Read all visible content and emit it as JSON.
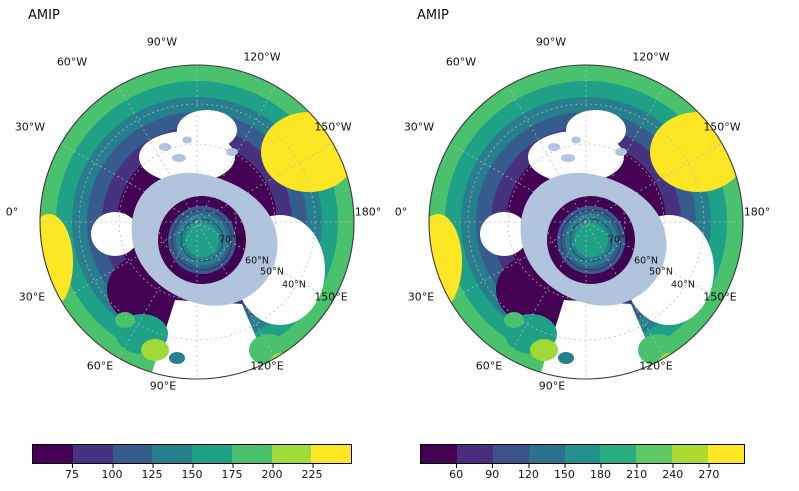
{
  "figure": {
    "panels": [
      {
        "title": "AMIP",
        "lon_labels": [
          "90°W",
          "60°W",
          "120°W",
          "30°W",
          "150°W",
          "0°",
          "180°",
          "30°E",
          "150°E",
          "60°E",
          "120°E",
          "90°E"
        ],
        "lat_labels": [
          "70°N",
          "60°N",
          "50°N",
          "40°N"
        ],
        "colorbar": {
          "ticks": [
            "75",
            "100",
            "125",
            "150",
            "175",
            "200",
            "225"
          ],
          "colors": [
            "#440154",
            "#46327e",
            "#365c8d",
            "#277f8e",
            "#1fa187",
            "#4ac16d",
            "#a0da39",
            "#fde725"
          ]
        }
      },
      {
        "title": "AMIP",
        "lon_labels": [
          "90°W",
          "60°W",
          "120°W",
          "30°W",
          "150°W",
          "0°",
          "180°",
          "30°E",
          "150°E",
          "60°E",
          "120°E",
          "90°E"
        ],
        "lat_labels": [
          "70°N",
          "60°N",
          "50°N",
          "40°N"
        ],
        "colorbar": {
          "ticks": [
            "60",
            "90",
            "120",
            "150",
            "180",
            "210",
            "240",
            "270"
          ],
          "colors": [
            "#440154",
            "#472d7b",
            "#3b528b",
            "#2c728e",
            "#21918c",
            "#28ae80",
            "#5ec962",
            "#addc30",
            "#fde725"
          ]
        }
      }
    ],
    "map_colors": {
      "masked_region": "#b0c4de",
      "no_data": "#ffffff",
      "outline": "#3a3a3a"
    }
  },
  "chart_data": [
    {
      "type": "heatmap",
      "title": "AMIP",
      "projection": "north polar stereographic",
      "legend_position": "bottom horizontal colorbar",
      "colorbar_ticks": [
        75,
        100,
        125,
        150,
        175,
        200,
        225
      ],
      "colorbar_colors": [
        "#440154",
        "#46327e",
        "#365c8d",
        "#277f8e",
        "#1fa187",
        "#4ac16d",
        "#a0da39",
        "#fde725"
      ],
      "lon_gridline_labels": [
        "0°",
        "30°W",
        "60°W",
        "90°W",
        "120°W",
        "150°W",
        "180°",
        "150°E",
        "120°E",
        "90°E",
        "60°E",
        "30°E"
      ],
      "lat_gridline_labels": [
        "70°N",
        "60°N",
        "50°N",
        "40°N"
      ],
      "field_description": "filled contours, low values (dark purple ~75) around central Arctic, high values (yellow ~225) near outer mid-latitude edges; light blue = masked region around pole, white = no data"
    },
    {
      "type": "heatmap",
      "title": "AMIP",
      "projection": "north polar stereographic",
      "legend_position": "bottom horizontal colorbar",
      "colorbar_ticks": [
        60,
        90,
        120,
        150,
        180,
        210,
        240,
        270
      ],
      "colorbar_colors": [
        "#440154",
        "#472d7b",
        "#3b528b",
        "#2c728e",
        "#21918c",
        "#28ae80",
        "#5ec962",
        "#addc30",
        "#fde725"
      ],
      "lon_gridline_labels": [
        "0°",
        "30°W",
        "60°W",
        "90°W",
        "120°W",
        "150°W",
        "180°",
        "150°E",
        "120°E",
        "90°E",
        "60°E",
        "30°E"
      ],
      "lat_gridline_labels": [
        "70°N",
        "60°N",
        "50°N",
        "40°N"
      ],
      "field_description": "filled contours, low values (dark purple ~60) around central Arctic, high values (yellow ~270) near outer mid-latitude edges; light blue = masked region around pole, white = no data"
    }
  ]
}
